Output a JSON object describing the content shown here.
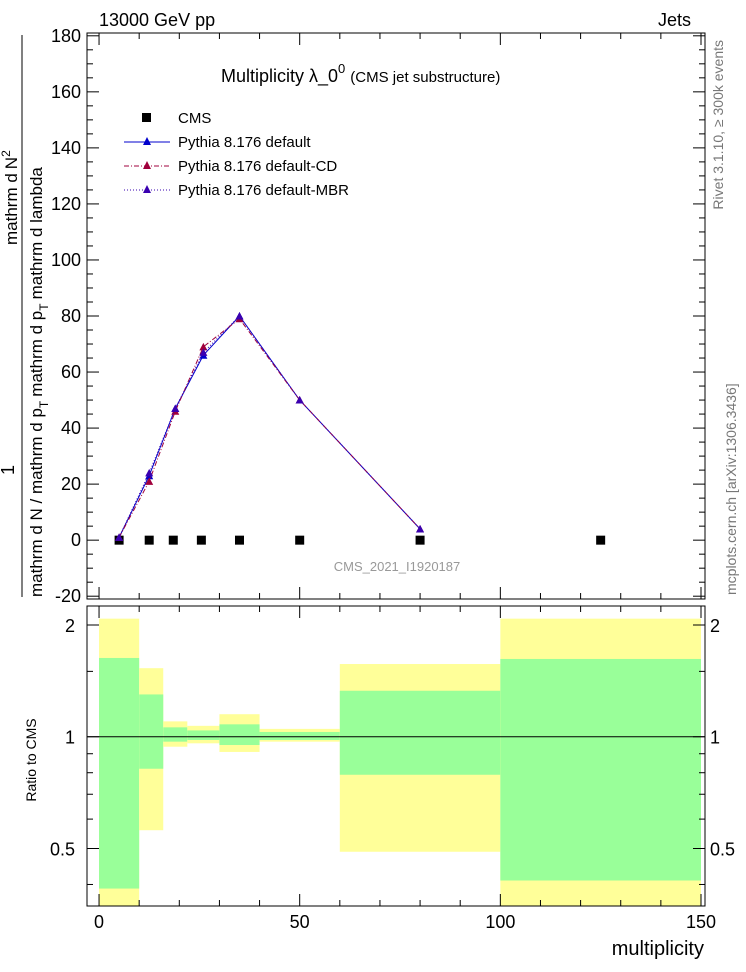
{
  "header": {
    "left": "13000 GeV pp",
    "right": "Jets"
  },
  "side_text": {
    "right_upper": "Rivet 3.1.10, ≥ 300k events",
    "right_lower": "mcplots.cern.ch [arXiv:1306.3436]"
  },
  "chart_data": [
    {
      "type": "line",
      "title_main": "Multiplicity  λ_0",
      "title_sup": "0",
      "title_sub": "(CMS jet substructure)",
      "watermark": "CMS_2021_I1920187",
      "ylabel": {
        "numerator": "1",
        "denominator": "mathrm d N / mathrm d p",
        "denominator_sub": "T",
        "second": "mathrm d",
        "second_tail": "N",
        "second_sup": "2",
        "second_mid": "mathrm d p",
        "second_mid_sub": "T",
        "second_end": "mathrm d lambda"
      },
      "xlim": [
        -3,
        151
      ],
      "ylim": [
        -21,
        181
      ],
      "y_ticks": [
        -20,
        0,
        20,
        40,
        60,
        80,
        100,
        120,
        140,
        160,
        180
      ],
      "legend_position": "top-left",
      "colors": {
        "cms": "#000000",
        "default": "#0000cc",
        "default_cd": "#a0003c",
        "default_mbr": "#3a00b0"
      },
      "series": [
        {
          "name": "CMS",
          "style": "markers",
          "x": [
            5,
            12.5,
            18.5,
            25.5,
            35,
            50,
            80,
            125
          ],
          "y": [
            0,
            0,
            0,
            0,
            0,
            0,
            0,
            0
          ]
        },
        {
          "name": "Pythia 8.176 default",
          "style": "line-solid",
          "x": [
            5,
            12.5,
            19,
            26,
            35,
            50,
            80
          ],
          "y": [
            1,
            23,
            47,
            66,
            80,
            50,
            4
          ]
        },
        {
          "name": "Pythia 8.176 default-CD",
          "style": "line-dashdot",
          "x": [
            5,
            12.5,
            19,
            26,
            35,
            50,
            80
          ],
          "y": [
            1,
            21,
            46,
            69,
            79,
            50,
            4
          ]
        },
        {
          "name": "Pythia 8.176 default-MBR",
          "style": "line-dotted",
          "x": [
            5,
            12.5,
            19,
            26,
            35,
            50,
            80
          ],
          "y": [
            1,
            24,
            47,
            67,
            80,
            50,
            4
          ]
        }
      ]
    },
    {
      "type": "area",
      "ylabel": "Ratio to CMS",
      "xlabel": "multiplicity",
      "xlim": [
        -3,
        151
      ],
      "ylim": [
        0.35,
        2.25
      ],
      "x_ticks": [
        0,
        50,
        100,
        150
      ],
      "y_ticks": [
        0.5,
        1,
        2
      ],
      "colors": {
        "stat_band": "#99ff99",
        "total_band": "#ffff99",
        "reference": "#000000"
      },
      "bins": [
        {
          "x_low": 0,
          "x_high": 10,
          "yellow_low": 0.35,
          "yellow_high": 2.08,
          "green_low": 0.39,
          "green_high": 1.63
        },
        {
          "x_low": 10,
          "x_high": 16,
          "yellow_low": 0.56,
          "yellow_high": 1.53,
          "green_low": 0.82,
          "green_high": 1.3
        },
        {
          "x_low": 16,
          "x_high": 22,
          "yellow_low": 0.94,
          "yellow_high": 1.1,
          "green_low": 0.97,
          "green_high": 1.06
        },
        {
          "x_low": 22,
          "x_high": 30,
          "yellow_low": 0.96,
          "yellow_high": 1.07,
          "green_low": 0.98,
          "green_high": 1.04
        },
        {
          "x_low": 30,
          "x_high": 40,
          "yellow_low": 0.91,
          "yellow_high": 1.15,
          "green_low": 0.95,
          "green_high": 1.08
        },
        {
          "x_low": 40,
          "x_high": 60,
          "yellow_low": 0.97,
          "yellow_high": 1.05,
          "green_low": 0.98,
          "green_high": 1.03
        },
        {
          "x_low": 60,
          "x_high": 100,
          "yellow_low": 0.49,
          "yellow_high": 1.57,
          "green_low": 0.79,
          "green_high": 1.33
        },
        {
          "x_low": 100,
          "x_high": 150,
          "yellow_low": 0.35,
          "yellow_high": 2.08,
          "green_low": 0.41,
          "green_high": 1.62
        }
      ]
    }
  ]
}
